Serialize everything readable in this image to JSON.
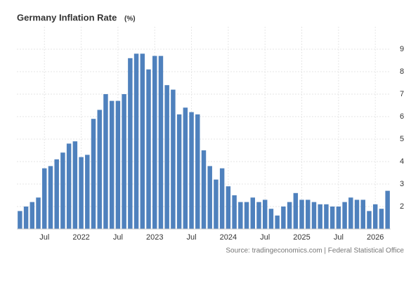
{
  "chart_data": {
    "type": "bar",
    "title": "Germany Inflation Rate",
    "unit": "(%)",
    "source": "Source: tradingeconomics.com | Federal Statistical Office",
    "categories": [
      null,
      null,
      null,
      null,
      "Jul",
      null,
      null,
      null,
      null,
      null,
      "2022",
      null,
      null,
      null,
      null,
      null,
      "Jul",
      null,
      null,
      null,
      null,
      null,
      "2023",
      null,
      null,
      null,
      null,
      null,
      "Jul",
      null,
      null,
      null,
      null,
      null,
      "2024",
      null,
      null,
      null,
      null,
      null,
      "Jul",
      null,
      null,
      null,
      null,
      null,
      "2025",
      null,
      null,
      null,
      null,
      null,
      "Jul",
      null,
      null,
      null,
      null,
      null,
      "2026",
      null,
      null
    ],
    "values": [
      1.8,
      2.0,
      2.2,
      2.4,
      3.7,
      3.8,
      4.1,
      4.4,
      4.8,
      4.9,
      4.2,
      4.3,
      5.9,
      6.3,
      7.0,
      6.7,
      6.7,
      7.0,
      8.6,
      8.8,
      8.8,
      8.1,
      8.7,
      8.7,
      7.4,
      7.2,
      6.1,
      6.4,
      6.2,
      6.1,
      4.5,
      3.8,
      3.2,
      3.7,
      2.9,
      2.5,
      2.2,
      2.2,
      2.4,
      2.2,
      2.3,
      1.9,
      1.6,
      2.0,
      2.2,
      2.6,
      2.3,
      2.3,
      2.2,
      2.1,
      2.1,
      2.0,
      2.0,
      2.2,
      2.4,
      2.3,
      2.3,
      1.8,
      2.1,
      1.9,
      2.7
    ],
    "color": "#4f81bd",
    "ylim": [
      1,
      10
    ],
    "yticks": [
      2,
      3,
      4,
      5,
      6,
      7,
      8,
      9
    ],
    "grid": true
  }
}
